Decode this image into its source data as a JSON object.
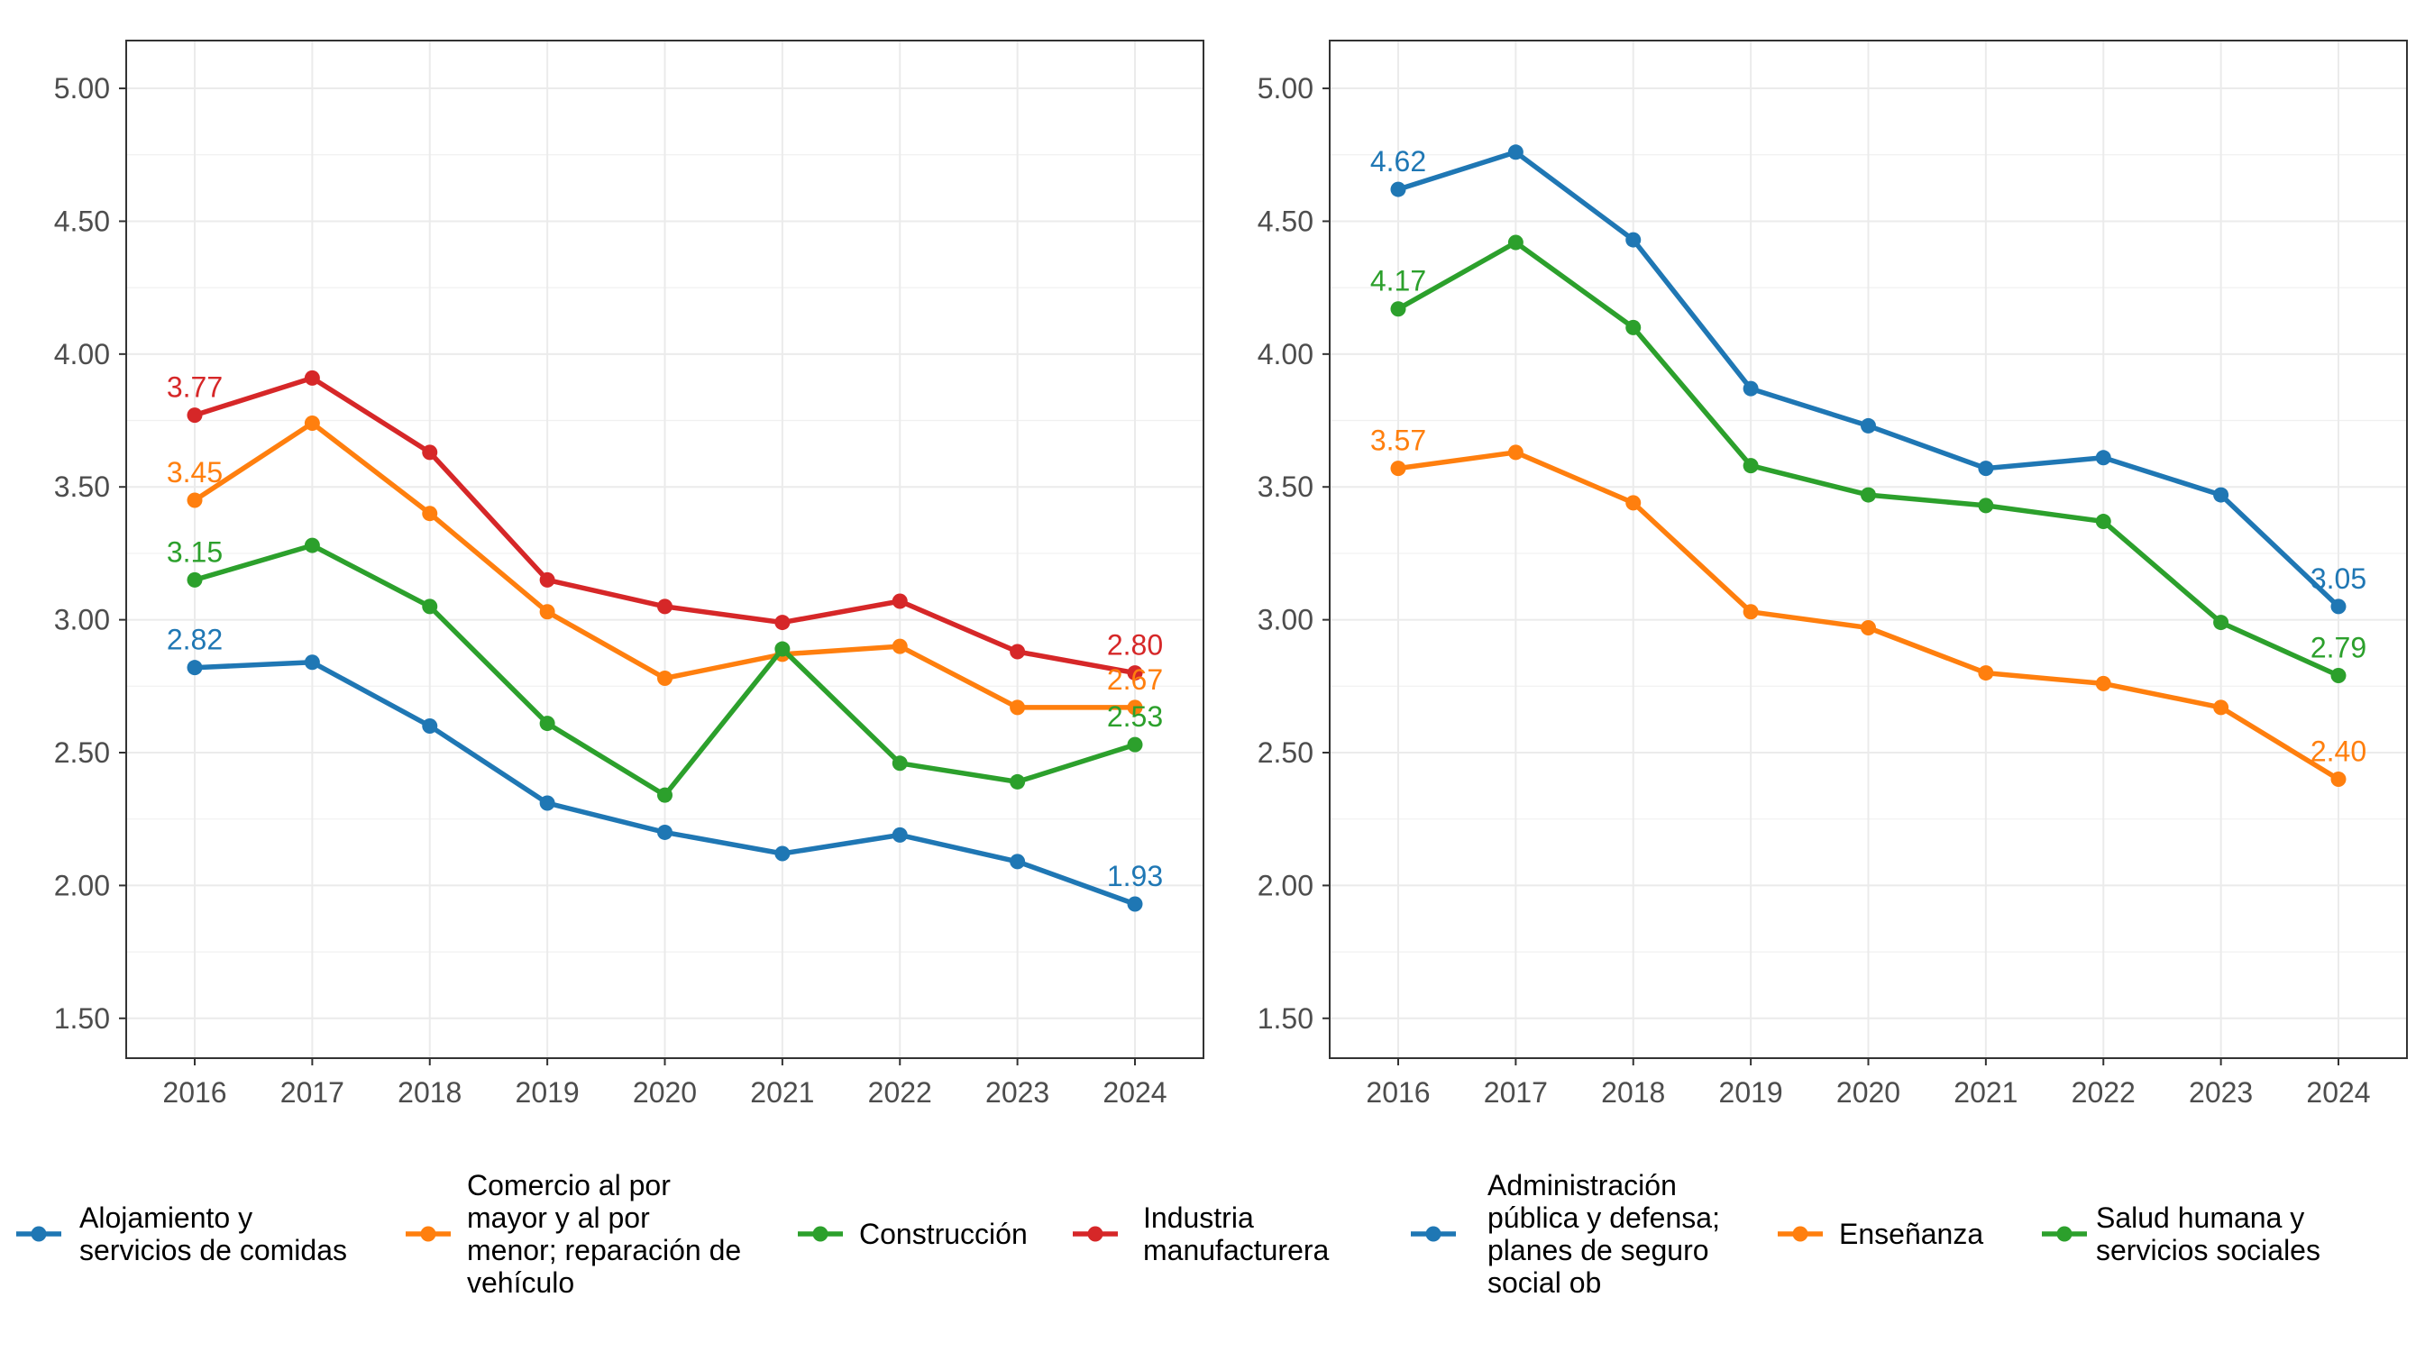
{
  "chart_data": [
    {
      "type": "line",
      "title": "",
      "xlabel": "",
      "ylabel": "",
      "x": [
        "2016",
        "2017",
        "2018",
        "2019",
        "2020",
        "2021",
        "2022",
        "2023",
        "2024"
      ],
      "ylim": [
        1.35,
        5.18
      ],
      "yticks": [
        "1.50",
        "2.00",
        "2.50",
        "3.00",
        "3.50",
        "4.00",
        "4.50",
        "5.00"
      ],
      "grid": true,
      "legend": "bottom",
      "series": [
        {
          "name": "Alojamiento y servicios de comidas",
          "legend_lines": [
            "Alojamiento y",
            "servicios de comidas"
          ],
          "color": "#1f77b4",
          "values": [
            2.82,
            2.84,
            2.6,
            2.31,
            2.2,
            2.12,
            2.19,
            2.09,
            1.93
          ],
          "start_label": "2.82",
          "end_label": "1.93"
        },
        {
          "name": "Comercio al por mayor y al por menor; reparación de vehículo",
          "legend_lines": [
            "Comercio al por",
            "mayor y al por",
            "menor; reparación de",
            "vehículo"
          ],
          "color": "#ff7f0e",
          "values": [
            3.45,
            3.74,
            3.4,
            3.03,
            2.78,
            2.87,
            2.9,
            2.67,
            2.67
          ],
          "start_label": "3.45",
          "end_label": "2.67"
        },
        {
          "name": "Construcción",
          "legend_lines": [
            "Construcción"
          ],
          "color": "#2ca02c",
          "values": [
            3.15,
            3.28,
            3.05,
            2.61,
            2.34,
            2.89,
            2.46,
            2.39,
            2.53
          ],
          "start_label": "3.15",
          "end_label": "2.53"
        },
        {
          "name": "Industria manufacturera",
          "legend_lines": [
            "Industria",
            "manufacturera"
          ],
          "color": "#d62728",
          "values": [
            3.77,
            3.91,
            3.63,
            3.15,
            3.05,
            2.99,
            3.07,
            2.88,
            2.8
          ],
          "start_label": "3.77",
          "end_label": "2.80"
        }
      ]
    },
    {
      "type": "line",
      "title": "",
      "xlabel": "",
      "ylabel": "",
      "x": [
        "2016",
        "2017",
        "2018",
        "2019",
        "2020",
        "2021",
        "2022",
        "2023",
        "2024"
      ],
      "ylim": [
        1.35,
        5.18
      ],
      "yticks": [
        "1.50",
        "2.00",
        "2.50",
        "3.00",
        "3.50",
        "4.00",
        "4.50",
        "5.00"
      ],
      "grid": true,
      "legend": "bottom",
      "series": [
        {
          "name": "Administración pública y defensa; planes de seguro social ob",
          "legend_lines": [
            "Administración",
            "pública y defensa;",
            "planes de seguro",
            "social ob"
          ],
          "color": "#1f77b4",
          "values": [
            4.62,
            4.76,
            4.43,
            3.87,
            3.73,
            3.57,
            3.61,
            3.47,
            3.05
          ],
          "start_label": "4.62",
          "end_label": "3.05"
        },
        {
          "name": "Enseñanza",
          "legend_lines": [
            "Enseñanza"
          ],
          "color": "#ff7f0e",
          "values": [
            3.57,
            3.63,
            3.44,
            3.03,
            2.97,
            2.8,
            2.76,
            2.67,
            2.4
          ],
          "start_label": "3.57",
          "end_label": "2.40"
        },
        {
          "name": "Salud humana y servicios sociales",
          "legend_lines": [
            "Salud humana y",
            "servicios sociales"
          ],
          "color": "#2ca02c",
          "values": [
            4.17,
            4.42,
            4.1,
            3.58,
            3.47,
            3.43,
            3.37,
            2.99,
            2.79
          ],
          "start_label": "4.17",
          "end_label": "2.79"
        }
      ]
    }
  ]
}
